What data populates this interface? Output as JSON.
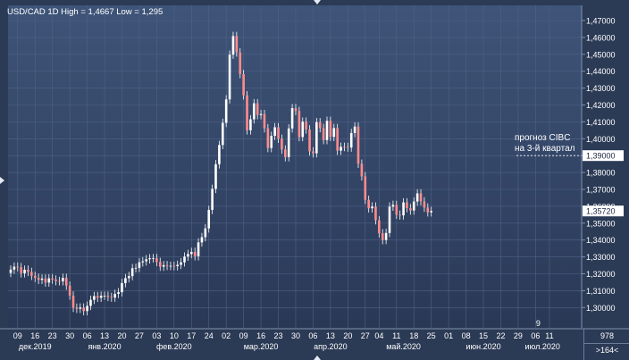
{
  "header": {
    "title": "USD/CAD 1D High = 1,4667 Low = 1,295"
  },
  "colors": {
    "background": "#2b3a55",
    "plot_top": "#3e5478",
    "plot_bottom": "#2a3856",
    "candle_up": "#ffffff",
    "candle_down": "#ff8c8c",
    "wick": "#ffffff",
    "axis_text": "#ffffff",
    "price_tag_bg": "#ffffff",
    "price_tag_text": "#1a2540"
  },
  "annotation": {
    "line1": "прогноз CIBC",
    "line2": "на 3-й квартал",
    "price_label": "1,39000",
    "price_value": 1.39
  },
  "last_price": {
    "label": "1,35720",
    "value": 1.3572
  },
  "corner": {
    "top": "978",
    "bottom": ">164<"
  },
  "chart_data": {
    "type": "candlestick",
    "title": "USD/CAD 1D High = 1,4667 Low = 1,295",
    "ylim": [
      1.29,
      1.475
    ],
    "y_ticks": [
      1.3,
      1.31,
      1.32,
      1.33,
      1.34,
      1.35,
      1.36,
      1.37,
      1.38,
      1.39,
      1.4,
      1.41,
      1.42,
      1.43,
      1.44,
      1.45,
      1.46,
      1.47
    ],
    "y_tick_labels": [
      "1,30000",
      "1,31000",
      "1,32000",
      "1,33000",
      "1,34000",
      "1,35000",
      "1,36000",
      "1,37000",
      "1,38000",
      "1,39000",
      "1,40000",
      "1,41000",
      "1,42000",
      "1,43000",
      "1,44000",
      "1,45000",
      "1,46000",
      "1,47000"
    ],
    "x_tick_labels": [
      "09",
      "16",
      "23",
      "30",
      "06",
      "13",
      "20",
      "27",
      "03",
      "10",
      "17",
      "24",
      "02",
      "09",
      "16",
      "23",
      "30",
      "06",
      "13",
      "20",
      "27",
      "04",
      "11",
      "18",
      "25",
      "01",
      "08",
      "15",
      "22",
      "29",
      "06",
      "11"
    ],
    "x_tick_index": [
      2,
      7,
      12,
      17,
      22,
      27,
      32,
      37,
      42,
      47,
      52,
      57,
      62,
      67,
      72,
      77,
      82,
      87,
      92,
      97,
      102,
      106,
      111,
      116,
      121,
      126,
      131,
      136,
      141,
      146,
      151,
      155
    ],
    "months": [
      {
        "label": "дек.2019",
        "index": 7
      },
      {
        "label": "янв.2020",
        "index": 27
      },
      {
        "label": "фев.2020",
        "index": 47
      },
      {
        "label": "мар.2020",
        "index": 72
      },
      {
        "label": "апр.2020",
        "index": 92
      },
      {
        "label": "май.2020",
        "index": 113
      },
      {
        "label": "июн.2020",
        "index": 136
      },
      {
        "label": "июл.2020",
        "index": 153
      }
    ],
    "extra_labels": [
      {
        "label": "9",
        "index": 151
      }
    ],
    "closes": [
      1.3225,
      1.3242,
      1.3239,
      1.3203,
      1.3224,
      1.3211,
      1.3188,
      1.3176,
      1.3164,
      1.3172,
      1.3148,
      1.3173,
      1.3166,
      1.3157,
      1.3156,
      1.3176,
      1.313,
      1.3071,
      1.2999,
      1.2993,
      1.3,
      1.2979,
      1.301,
      1.3046,
      1.3068,
      1.3058,
      1.307,
      1.307,
      1.3063,
      1.3059,
      1.3081,
      1.3091,
      1.3145,
      1.3174,
      1.3186,
      1.3233,
      1.3235,
      1.3268,
      1.3274,
      1.3286,
      1.3292,
      1.3293,
      1.327,
      1.3242,
      1.3251,
      1.3247,
      1.3247,
      1.3245,
      1.3253,
      1.3268,
      1.3302,
      1.3317,
      1.333,
      1.3304,
      1.3386,
      1.3417,
      1.3469,
      1.3578,
      1.3703,
      1.3849,
      1.3963,
      1.4094,
      1.4233,
      1.4498,
      1.4608,
      1.4511,
      1.4383,
      1.4257,
      1.405,
      1.4115,
      1.421,
      1.414,
      1.4146,
      1.4062,
      1.3945,
      1.4017,
      1.4068,
      1.4,
      1.3936,
      1.3891,
      1.4061,
      1.4181,
      1.4164,
      1.401,
      1.4101,
      1.4055,
      1.3925,
      1.3914,
      1.4098,
      1.4063,
      1.3992,
      1.4106,
      1.4011,
      1.4063,
      1.3929,
      1.3952,
      1.3951,
      1.3948,
      1.4034,
      1.4072,
      1.3852,
      1.3777,
      1.3638,
      1.3588,
      1.3598,
      1.3517,
      1.344,
      1.34,
      1.3442,
      1.3598,
      1.3608,
      1.355,
      1.3546,
      1.3623,
      1.3589,
      1.3575,
      1.3628,
      1.3676,
      1.3629,
      1.3592,
      1.3564,
      1.3572
    ],
    "series": [
      {
        "values_key": "closes",
        "color_up": "#ffffff",
        "color_down": "#ff8c8c"
      }
    ],
    "xlabel": "",
    "ylabel": "",
    "grid": true
  }
}
